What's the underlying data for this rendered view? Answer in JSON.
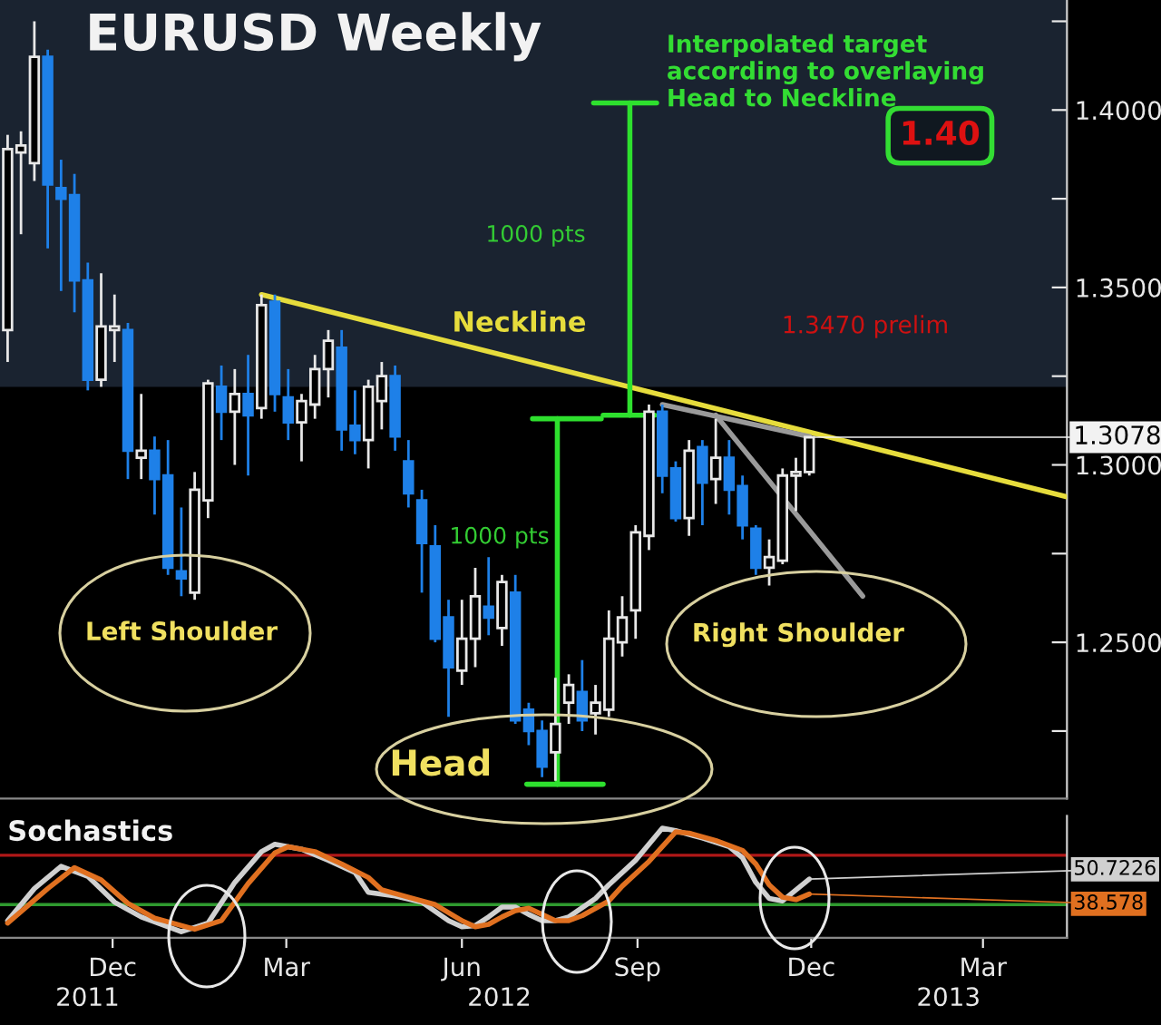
{
  "chart_data": [
    {
      "type": "candlestick",
      "title": "EURUSD Weekly",
      "x": [
        "2011-10-21",
        "2011-10-28",
        "2011-11-04",
        "2011-11-11",
        "2011-11-18",
        "2011-11-25",
        "2011-12-02",
        "2011-12-09",
        "2011-12-16",
        "2011-12-23",
        "2011-12-30",
        "2012-01-06",
        "2012-01-13",
        "2012-01-20",
        "2012-01-27",
        "2012-02-03",
        "2012-02-10",
        "2012-02-17",
        "2012-02-24",
        "2012-03-02",
        "2012-03-09",
        "2012-03-16",
        "2012-03-23",
        "2012-03-30",
        "2012-04-06",
        "2012-04-13",
        "2012-04-20",
        "2012-04-27",
        "2012-05-04",
        "2012-05-11",
        "2012-05-18",
        "2012-05-25",
        "2012-06-01",
        "2012-06-08",
        "2012-06-15",
        "2012-06-22",
        "2012-06-29",
        "2012-07-06",
        "2012-07-13",
        "2012-07-20",
        "2012-07-27",
        "2012-08-03",
        "2012-08-10",
        "2012-08-17",
        "2012-08-24",
        "2012-08-31",
        "2012-09-07",
        "2012-09-14",
        "2012-09-21",
        "2012-09-28",
        "2012-10-05",
        "2012-10-12",
        "2012-10-19",
        "2012-10-26",
        "2012-11-02",
        "2012-11-09",
        "2012-11-16",
        "2012-11-23",
        "2012-11-30",
        "2012-12-07",
        "2012-12-14"
      ],
      "ohlc": [
        [
          1.338,
          1.393,
          1.329,
          1.389
        ],
        [
          1.388,
          1.394,
          1.365,
          1.39
        ],
        [
          1.385,
          1.425,
          1.38,
          1.415
        ],
        [
          1.415,
          1.417,
          1.361,
          1.379
        ],
        [
          1.378,
          1.386,
          1.349,
          1.375
        ],
        [
          1.376,
          1.382,
          1.343,
          1.352
        ],
        [
          1.352,
          1.357,
          1.321,
          1.324
        ],
        [
          1.324,
          1.354,
          1.322,
          1.339
        ],
        [
          1.338,
          1.348,
          1.329,
          1.339
        ],
        [
          1.338,
          1.34,
          1.296,
          1.304
        ],
        [
          1.302,
          1.32,
          1.296,
          1.304
        ],
        [
          1.304,
          1.308,
          1.286,
          1.296
        ],
        [
          1.297,
          1.307,
          1.269,
          1.271
        ],
        [
          1.27,
          1.288,
          1.263,
          1.268
        ],
        [
          1.264,
          1.298,
          1.262,
          1.293
        ],
        [
          1.29,
          1.324,
          1.285,
          1.323
        ],
        [
          1.322,
          1.328,
          1.307,
          1.315
        ],
        [
          1.315,
          1.327,
          1.3,
          1.32
        ],
        [
          1.32,
          1.331,
          1.297,
          1.314
        ],
        [
          1.316,
          1.348,
          1.313,
          1.345
        ],
        [
          1.346,
          1.348,
          1.315,
          1.32
        ],
        [
          1.319,
          1.327,
          1.307,
          1.312
        ],
        [
          1.312,
          1.32,
          1.301,
          1.318
        ],
        [
          1.317,
          1.331,
          1.313,
          1.327
        ],
        [
          1.327,
          1.338,
          1.319,
          1.335
        ],
        [
          1.333,
          1.338,
          1.304,
          1.31
        ],
        [
          1.311,
          1.321,
          1.303,
          1.307
        ],
        [
          1.307,
          1.324,
          1.299,
          1.322
        ],
        [
          1.318,
          1.329,
          1.31,
          1.325
        ],
        [
          1.325,
          1.328,
          1.304,
          1.308
        ],
        [
          1.301,
          1.307,
          1.288,
          1.292
        ],
        [
          1.29,
          1.293,
          1.264,
          1.278
        ],
        [
          1.277,
          1.283,
          1.25,
          1.251
        ],
        [
          1.257,
          1.262,
          1.229,
          1.243
        ],
        [
          1.242,
          1.262,
          1.238,
          1.251
        ],
        [
          1.251,
          1.271,
          1.243,
          1.263
        ],
        [
          1.26,
          1.274,
          1.252,
          1.257
        ],
        [
          1.254,
          1.269,
          1.249,
          1.267
        ],
        [
          1.264,
          1.269,
          1.227,
          1.228
        ],
        [
          1.231,
          1.233,
          1.221,
          1.225
        ],
        [
          1.225,
          1.228,
          1.212,
          1.215
        ],
        [
          1.219,
          1.24,
          1.211,
          1.227
        ],
        [
          1.233,
          1.241,
          1.227,
          1.238
        ],
        [
          1.236,
          1.245,
          1.225,
          1.228
        ],
        [
          1.23,
          1.238,
          1.224,
          1.233
        ],
        [
          1.231,
          1.259,
          1.229,
          1.251
        ],
        [
          1.25,
          1.263,
          1.246,
          1.257
        ],
        [
          1.259,
          1.283,
          1.251,
          1.281
        ],
        [
          1.28,
          1.317,
          1.276,
          1.315
        ],
        [
          1.315,
          1.317,
          1.292,
          1.297
        ],
        [
          1.299,
          1.301,
          1.284,
          1.285
        ],
        [
          1.285,
          1.307,
          1.28,
          1.304
        ],
        [
          1.305,
          1.307,
          1.283,
          1.295
        ],
        [
          1.296,
          1.313,
          1.289,
          1.302
        ],
        [
          1.302,
          1.307,
          1.286,
          1.293
        ],
        [
          1.294,
          1.297,
          1.279,
          1.283
        ],
        [
          1.282,
          1.283,
          1.269,
          1.271
        ],
        [
          1.271,
          1.279,
          1.266,
          1.274
        ],
        [
          1.273,
          1.299,
          1.272,
          1.297
        ],
        [
          1.297,
          1.302,
          1.287,
          1.298
        ],
        [
          1.298,
          1.308,
          1.297,
          1.3078
        ]
      ],
      "colors": [
        "#e8e8e8",
        "#e8e8e8",
        "#e8e8e8",
        "#1e80e8",
        "#1e80e8",
        "#1e80e8",
        "#1e80e8",
        "#e8e8e8",
        "#e8e8e8",
        "#1e80e8",
        "#e8e8e8",
        "#1e80e8",
        "#1e80e8",
        "#1e80e8",
        "#e8e8e8",
        "#e8e8e8",
        "#1e80e8",
        "#e8e8e8",
        "#1e80e8",
        "#e8e8e8",
        "#1e80e8",
        "#1e80e8",
        "#e8e8e8",
        "#e8e8e8",
        "#e8e8e8",
        "#1e80e8",
        "#1e80e8",
        "#e8e8e8",
        "#e8e8e8",
        "#1e80e8",
        "#1e80e8",
        "#1e80e8",
        "#1e80e8",
        "#1e80e8",
        "#e8e8e8",
        "#e8e8e8",
        "#1e80e8",
        "#e8e8e8",
        "#1e80e8",
        "#1e80e8",
        "#1e80e8",
        "#e8e8e8",
        "#e8e8e8",
        "#1e80e8",
        "#e8e8e8",
        "#e8e8e8",
        "#e8e8e8",
        "#e8e8e8",
        "#e8e8e8",
        "#1e80e8",
        "#1e80e8",
        "#e8e8e8",
        "#1e80e8",
        "#e8e8e8",
        "#1e80e8",
        "#1e80e8",
        "#1e80e8",
        "#e8e8e8",
        "#e8e8e8",
        "#e8e8e8",
        "#e8e8e8"
      ],
      "xlim": [
        "2011-10-17",
        "2013-04-28"
      ],
      "ylim": [
        1.206,
        1.431
      ],
      "yticks": [
        {
          "value": 1.225,
          "label": null
        },
        {
          "value": 1.25,
          "label": "1.2500"
        },
        {
          "value": 1.275,
          "label": null
        },
        {
          "value": 1.3,
          "label": "1.3000"
        },
        {
          "value": 1.325,
          "label": null
        },
        {
          "value": 1.35,
          "label": "1.3500"
        },
        {
          "value": 1.375,
          "label": null
        },
        {
          "value": 1.4,
          "label": "1.4000"
        },
        {
          "value": 1.425,
          "label": null
        }
      ],
      "tick_labels": "y",
      "bands": [
        {
          "axis": "y",
          "from": 1.322,
          "to": 1.431,
          "color": "#1a2330"
        }
      ],
      "series": [
        {
          "type": "line",
          "name": "Neckline",
          "x": [
            "2012-03-02",
            "2013-04-28"
          ],
          "values": [
            1.348,
            1.291
          ],
          "color": "#e6dc3c"
        },
        {
          "type": "line",
          "x": [
            "2012-09-28",
            "2012-12-14"
          ],
          "values": [
            1.317,
            1.308
          ],
          "color": "#9a9a9a"
        },
        {
          "type": "line",
          "x": [
            "2012-10-26",
            "2013-01-11"
          ],
          "values": [
            1.314,
            1.263
          ],
          "color": "#9a9a9a"
        },
        {
          "type": "line",
          "x": [
            "2012-08-04",
            "2012-08-04"
          ],
          "values": [
            1.21,
            1.313
          ],
          "color": "#2ee02e"
        },
        {
          "type": "line",
          "x": [
            "2012-07-19",
            "2012-08-28"
          ],
          "values": [
            1.21,
            1.21
          ],
          "color": "#2ee02e"
        },
        {
          "type": "line",
          "x": [
            "2012-07-22",
            "2012-08-27"
          ],
          "values": [
            1.313,
            1.313
          ],
          "color": "#2ee02e"
        },
        {
          "type": "line",
          "x": [
            "2012-09-11",
            "2012-09-11"
          ],
          "values": [
            1.314,
            1.402
          ],
          "color": "#2ee02e"
        },
        {
          "type": "line",
          "x": [
            "2012-08-28",
            "2012-09-24"
          ],
          "values": [
            1.314,
            1.314
          ],
          "color": "#2ee02e"
        },
        {
          "type": "line",
          "x": [
            "2012-08-23",
            "2012-09-25"
          ],
          "values": [
            1.402,
            1.402
          ],
          "color": "#2ee02e"
        }
      ],
      "annotations": [
        "Interpolated target\naccording to overlaying\nHead to Neckline",
        "1.40",
        "1000 pts",
        "1000 pts",
        "1.3470 prelim",
        "Left Shoulder",
        "Head",
        "Right Shoulder",
        {
          "text": "1.3078",
          "x": "2012-12-14",
          "y": 1.3078
        }
      ]
    },
    {
      "type": "line",
      "title": "Sochastics",
      "ylim": [
        3,
        102
      ],
      "tick_labels": "x",
      "annotations": [
        "2011",
        "2012",
        "2013"
      ],
      "xlim": [
        "2011-10-17",
        "2013-04-28"
      ],
      "xticks": [
        {
          "value": "2011-12-15",
          "label": "Dec"
        },
        {
          "value": "2012-03-15",
          "label": "Mar"
        },
        {
          "value": "2012-06-15",
          "label": "Jun"
        },
        {
          "value": "2012-09-15",
          "label": "Sep"
        },
        {
          "value": "2012-12-15",
          "label": "Dec"
        },
        {
          "value": "2013-03-15",
          "label": "Mar"
        }
      ],
      "ref_lines": [
        {
          "axis": "y",
          "value": 70,
          "color": "#b01818"
        },
        {
          "axis": "y",
          "value": 30,
          "color": "#2f9a2f"
        }
      ],
      "series": [
        {
          "color": "#d0d0d0",
          "x": [
            "2011-10-21",
            "2011-11-04",
            "2011-11-18",
            "2011-12-02",
            "2011-12-16",
            "2011-12-30",
            "2012-01-20",
            "2012-02-03",
            "2012-02-17",
            "2012-03-02",
            "2012-03-09",
            "2012-03-23",
            "2012-04-06",
            "2012-04-20",
            "2012-04-27",
            "2012-05-11",
            "2012-05-25",
            "2012-06-08",
            "2012-06-15",
            "2012-06-22",
            "2012-06-29",
            "2012-07-06",
            "2012-07-13",
            "2012-07-20",
            "2012-07-27",
            "2012-08-03",
            "2012-08-10",
            "2012-08-24",
            "2012-08-31",
            "2012-09-14",
            "2012-09-28",
            "2012-10-05",
            "2012-10-19",
            "2012-11-02",
            "2012-11-09",
            "2012-11-16",
            "2012-11-23",
            "2012-11-30",
            "2012-12-14"
          ],
          "values": [
            17,
            43,
            61,
            53,
            32,
            20,
            8,
            15,
            48,
            73,
            79,
            75,
            66,
            56,
            40,
            37,
            32,
            17,
            12,
            13,
            20,
            28,
            28,
            22,
            17,
            17,
            20,
            35,
            46,
            66,
            92,
            90,
            84,
            77,
            68,
            48,
            35,
            33,
            50.7226
          ],
          "value_labels": [
            null,
            null,
            null,
            null,
            null,
            null,
            null,
            null,
            null,
            null,
            null,
            null,
            null,
            null,
            null,
            null,
            null,
            null,
            null,
            null,
            null,
            null,
            null,
            null,
            null,
            null,
            null,
            null,
            null,
            null,
            null,
            null,
            null,
            null,
            null,
            null,
            null,
            null,
            "50.7226"
          ]
        },
        {
          "color": "#e07020",
          "x": [
            "2011-10-21",
            "2011-11-11",
            "2011-11-25",
            "2011-12-09",
            "2011-12-23",
            "2012-01-06",
            "2012-01-27",
            "2012-02-10",
            "2012-02-24",
            "2012-03-09",
            "2012-03-16",
            "2012-03-30",
            "2012-04-13",
            "2012-04-27",
            "2012-05-04",
            "2012-05-18",
            "2012-06-01",
            "2012-06-15",
            "2012-06-22",
            "2012-06-29",
            "2012-07-06",
            "2012-07-13",
            "2012-07-20",
            "2012-07-27",
            "2012-08-03",
            "2012-08-10",
            "2012-08-17",
            "2012-08-31",
            "2012-09-07",
            "2012-09-21",
            "2012-10-05",
            "2012-10-12",
            "2012-10-26",
            "2012-11-09",
            "2012-11-16",
            "2012-11-23",
            "2012-11-30",
            "2012-12-07",
            "2012-12-14"
          ],
          "values": [
            15,
            43,
            60,
            50,
            31,
            19,
            10,
            17,
            47,
            72,
            77,
            73,
            63,
            52,
            42,
            36,
            30,
            17,
            12,
            14,
            20,
            25,
            27,
            22,
            17,
            17,
            21,
            33,
            45,
            65,
            89,
            88,
            82,
            74,
            63,
            46,
            36,
            34,
            38.578
          ],
          "value_labels": [
            null,
            null,
            null,
            null,
            null,
            null,
            null,
            null,
            null,
            null,
            null,
            null,
            null,
            null,
            null,
            null,
            null,
            null,
            null,
            null,
            null,
            null,
            null,
            null,
            null,
            null,
            null,
            null,
            null,
            null,
            null,
            null,
            null,
            null,
            null,
            null,
            null,
            null,
            "38.578"
          ]
        }
      ]
    }
  ]
}
